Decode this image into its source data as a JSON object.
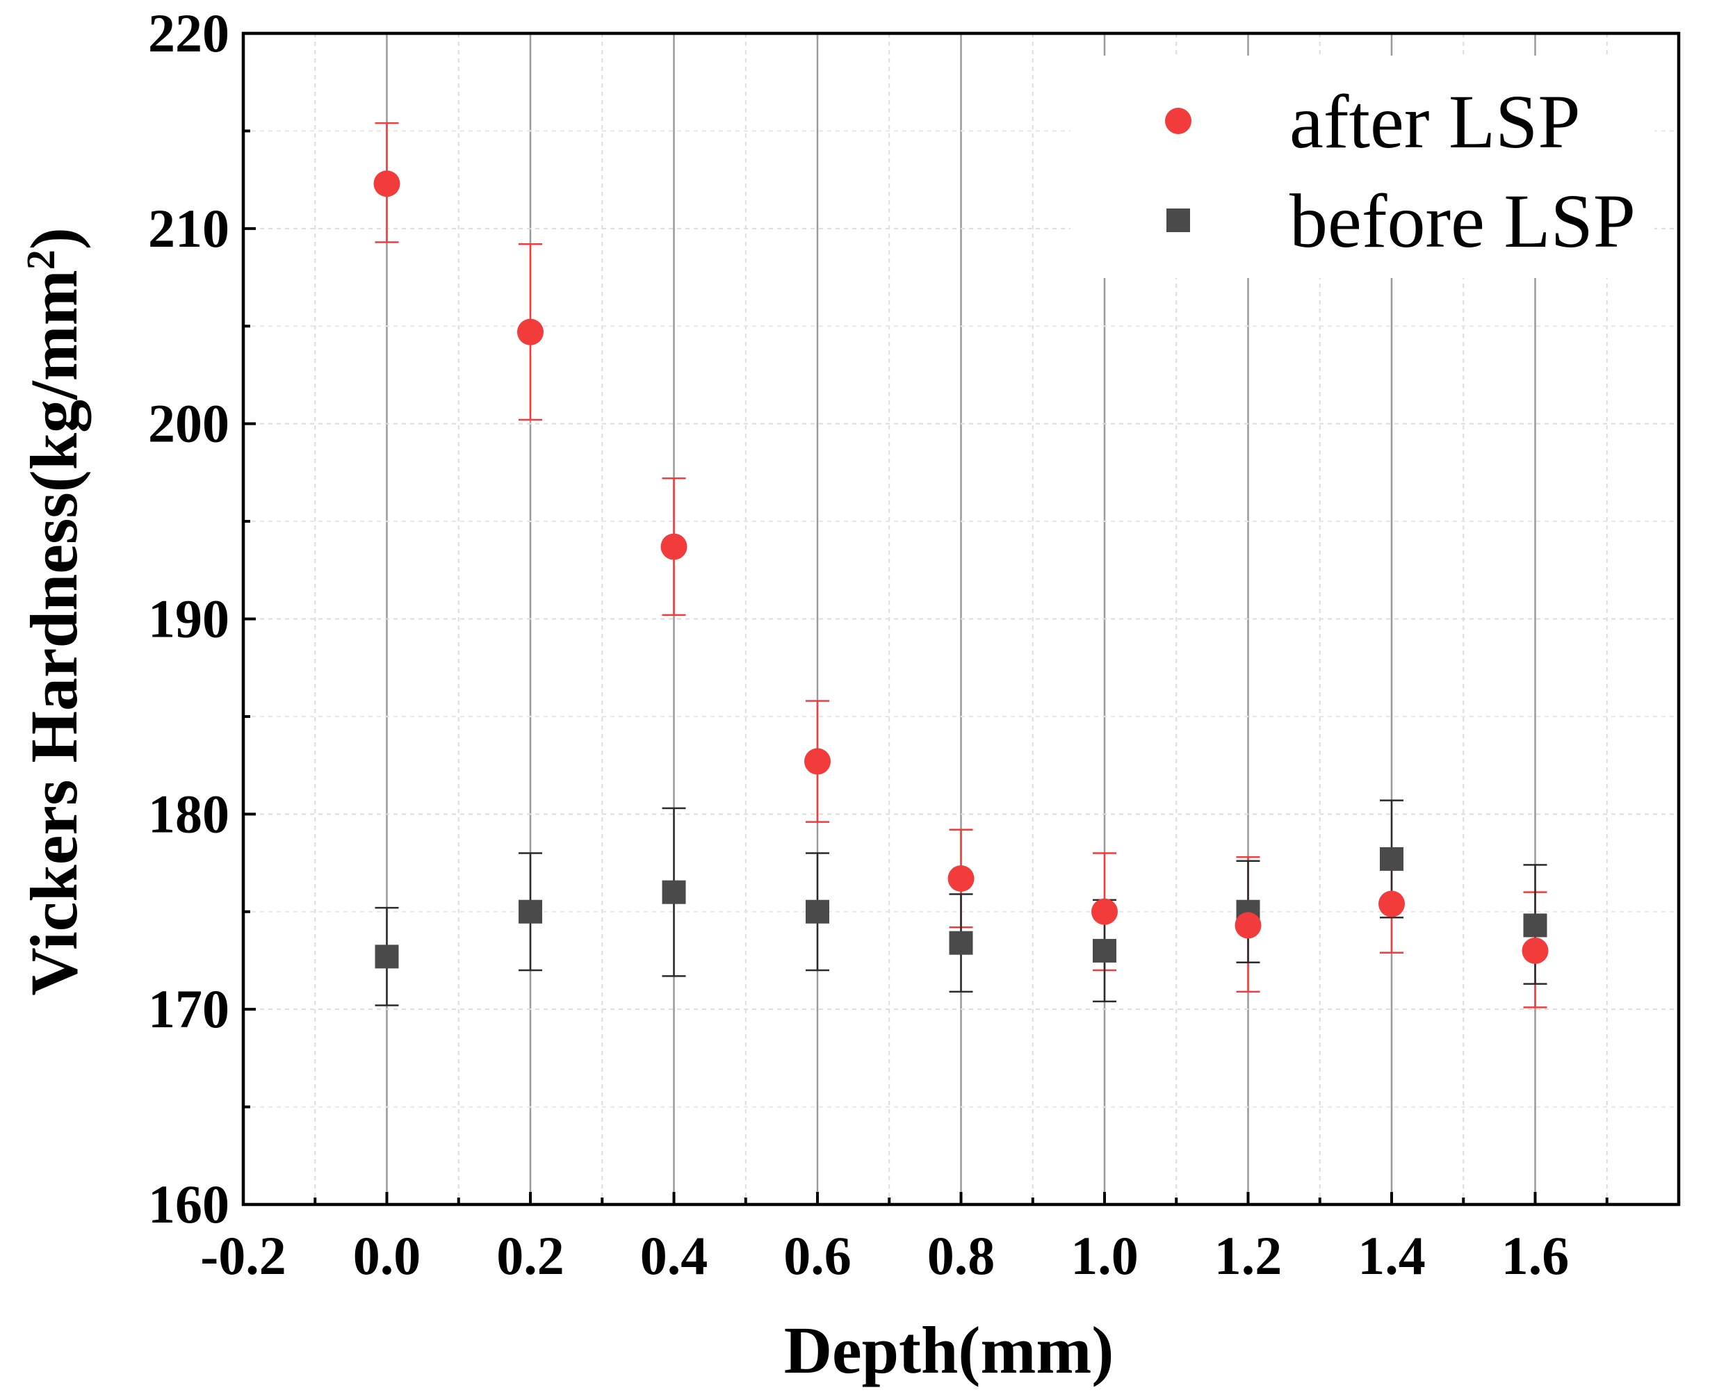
{
  "chart_data": {
    "type": "scatter",
    "title": "",
    "xlabel": "Depth(mm)",
    "ylabel_main": "Vickers Hardness(kg/mm",
    "ylabel_sup": "2",
    "ylabel_close": ")",
    "xlim": [
      -0.2,
      1.8
    ],
    "ylim": [
      160,
      220
    ],
    "x_major_ticks": [
      -0.2,
      0.0,
      0.2,
      0.4,
      0.6,
      0.8,
      1.0,
      1.2,
      1.4,
      1.6
    ],
    "x_minor_ticks": [
      -0.1,
      0.1,
      0.3,
      0.5,
      0.7,
      0.9,
      1.1,
      1.3,
      1.5,
      1.7
    ],
    "x_tick_labels": [
      "-0.2",
      "0.0",
      "0.2",
      "0.4",
      "0.6",
      "0.8",
      "1.0",
      "1.2",
      "1.4",
      "1.6"
    ],
    "y_major_ticks": [
      160,
      170,
      180,
      190,
      200,
      210,
      220
    ],
    "y_minor_ticks": [
      165,
      175,
      185,
      195,
      205,
      215
    ],
    "y_tick_labels": [
      "160",
      "170",
      "180",
      "190",
      "200",
      "210",
      "220"
    ],
    "grid": true,
    "legend_position": "top-right",
    "series": [
      {
        "name": "after LSP",
        "marker": "circle",
        "color": "#f23b3b",
        "x": [
          0.0,
          0.2,
          0.4,
          0.6,
          0.8,
          1.0,
          1.2,
          1.4,
          1.6
        ],
        "y": [
          212.3,
          204.7,
          193.7,
          182.7,
          176.7,
          175.0,
          174.3,
          175.4,
          173.0
        ],
        "err_low": [
          209.3,
          200.2,
          190.2,
          179.6,
          174.2,
          172.0,
          170.9,
          172.9,
          170.1
        ],
        "err_high": [
          215.4,
          209.2,
          197.2,
          185.8,
          179.2,
          178.0,
          177.8,
          177.9,
          176.0
        ]
      },
      {
        "name": "before LSP",
        "marker": "square",
        "color": "#4a4a4a",
        "x": [
          0.0,
          0.2,
          0.4,
          0.6,
          0.8,
          1.0,
          1.2,
          1.4,
          1.6
        ],
        "y": [
          172.7,
          175.0,
          176.0,
          175.0,
          173.4,
          173.0,
          175.0,
          177.7,
          174.3
        ],
        "err_low": [
          170.2,
          172.0,
          171.7,
          172.0,
          170.9,
          170.4,
          172.4,
          174.7,
          171.3
        ],
        "err_high": [
          175.2,
          178.0,
          180.3,
          178.0,
          175.9,
          175.6,
          177.6,
          180.7,
          177.4
        ]
      }
    ]
  }
}
